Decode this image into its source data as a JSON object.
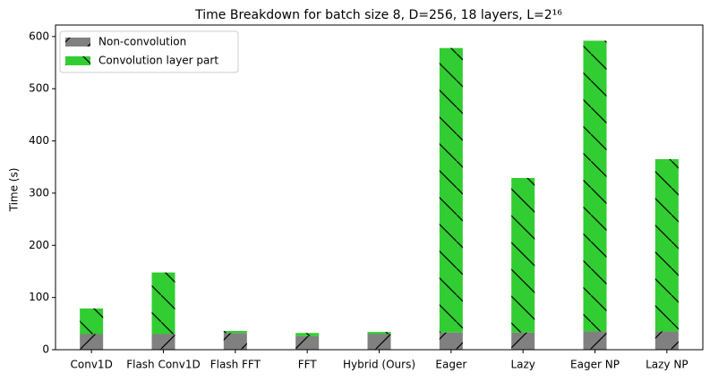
{
  "chart_data": {
    "type": "stacked_bar",
    "title": "Time Breakdown for batch size 8, D=256, 18 layers, L=2¹⁶",
    "y_label": "Time (s)",
    "categories": [
      "Conv1D",
      "Flash Conv1D",
      "Flash FFT",
      "FFT",
      "Hybrid (Ours)",
      "Eager",
      "Lazy",
      "Eager NP",
      "Lazy NP"
    ],
    "series": [
      {
        "name": "Non-convolution",
        "color": "#808080",
        "hatch": "/",
        "values": [
          30,
          30,
          32,
          26,
          30,
          33,
          33,
          35,
          35
        ]
      },
      {
        "name": "Convolution layer part",
        "color": "#32cd32",
        "hatch": "\\",
        "values": [
          49,
          118,
          4,
          6,
          4,
          545,
          296,
          557,
          330
        ]
      }
    ],
    "ylim": [
      0,
      622
    ],
    "yticks": [
      0,
      100,
      200,
      300,
      400,
      500,
      600
    ],
    "legend": "upper-left"
  }
}
